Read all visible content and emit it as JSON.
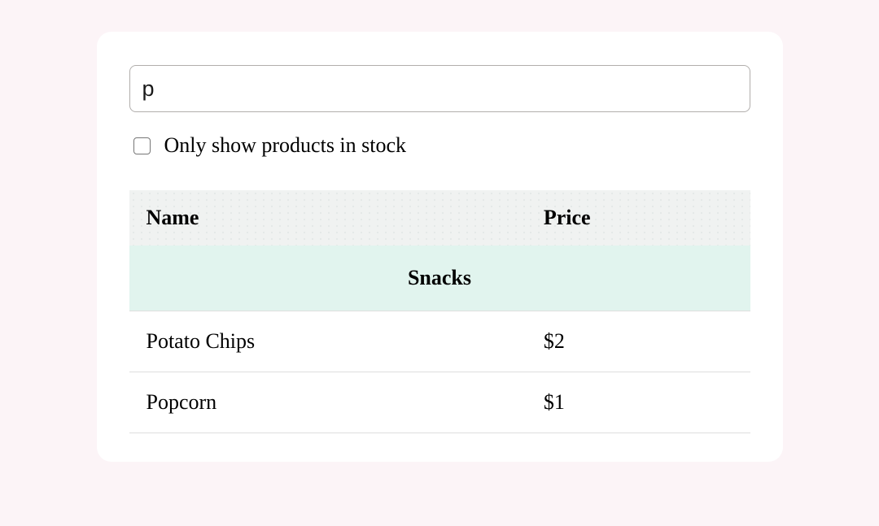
{
  "theme": {
    "page_bg": "#fcf4f7",
    "card_bg": "#ffffff",
    "header_bg": "#f0f2f1",
    "header_dot": "#e4e9e8",
    "category_bg": "#e1f4ee",
    "row_border": "#dedede",
    "input_border": "#b1aeac",
    "text_color": "#000000"
  },
  "search": {
    "value": "p"
  },
  "stock_filter": {
    "label": "Only show products in stock",
    "checked": false
  },
  "table": {
    "columns": [
      "Name",
      "Price"
    ],
    "sections": [
      {
        "category": "Snacks",
        "rows": [
          {
            "name": "Potato Chips",
            "price": "$2"
          },
          {
            "name": "Popcorn",
            "price": "$1"
          }
        ]
      }
    ]
  }
}
